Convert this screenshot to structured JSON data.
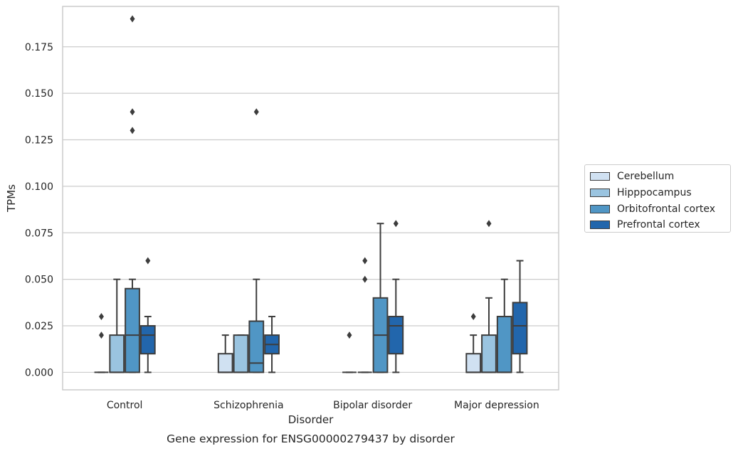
{
  "chart_data": {
    "type": "boxplot",
    "title": "Gene expression for ENSG00000279437 by disorder",
    "xlabel": "Disorder",
    "ylabel": "TPMs",
    "ylim": [
      -0.0094,
      0.1967
    ],
    "yticks": [
      0.0,
      0.025,
      0.05,
      0.075,
      0.1,
      0.125,
      0.15,
      0.175
    ],
    "ytick_labels": [
      "0.000",
      "0.025",
      "0.050",
      "0.075",
      "0.100",
      "0.125",
      "0.150",
      "0.175"
    ],
    "grid": true,
    "legend_position": "right",
    "categories": [
      "Control",
      "Schizophrenia",
      "Bipolar disorder",
      "Major depression"
    ],
    "series": [
      {
        "name": "Cerebellum",
        "color": "#d0e1f2",
        "boxes": [
          {
            "q1": 0.0,
            "median": 0.0,
            "q3": 0.0,
            "whisker_low": 0.0,
            "whisker_high": 0.0,
            "outliers": [
              0.02,
              0.03
            ]
          },
          {
            "q1": 0.0,
            "median": 0.0,
            "q3": 0.01,
            "whisker_low": 0.0,
            "whisker_high": 0.02,
            "outliers": []
          },
          {
            "q1": 0.0,
            "median": 0.0,
            "q3": 0.0,
            "whisker_low": 0.0,
            "whisker_high": 0.0,
            "outliers": [
              0.02
            ]
          },
          {
            "q1": 0.0,
            "median": 0.0,
            "q3": 0.01,
            "whisker_low": 0.0,
            "whisker_high": 0.02,
            "outliers": [
              0.03
            ]
          }
        ]
      },
      {
        "name": "Hipppocampus",
        "color": "#9ac4e0",
        "boxes": [
          {
            "q1": 0.0,
            "median": 0.0,
            "q3": 0.02,
            "whisker_low": 0.0,
            "whisker_high": 0.05,
            "outliers": []
          },
          {
            "q1": 0.0,
            "median": 0.0,
            "q3": 0.02,
            "whisker_low": 0.0,
            "whisker_high": 0.02,
            "outliers": []
          },
          {
            "q1": 0.0,
            "median": 0.0,
            "q3": 0.0,
            "whisker_low": 0.0,
            "whisker_high": 0.0,
            "outliers": [
              0.05,
              0.06
            ]
          },
          {
            "q1": 0.0,
            "median": 0.0,
            "q3": 0.02,
            "whisker_low": 0.0,
            "whisker_high": 0.04,
            "outliers": [
              0.08
            ]
          }
        ]
      },
      {
        "name": "Orbitofrontal cortex",
        "color": "#5096c5",
        "boxes": [
          {
            "q1": 0.0,
            "median": 0.02,
            "q3": 0.045,
            "whisker_low": 0.0,
            "whisker_high": 0.05,
            "outliers": [
              0.13,
              0.14,
              0.19
            ]
          },
          {
            "q1": 0.0,
            "median": 0.005,
            "q3": 0.0275,
            "whisker_low": 0.0,
            "whisker_high": 0.05,
            "outliers": [
              0.14
            ]
          },
          {
            "q1": 0.0,
            "median": 0.02,
            "q3": 0.04,
            "whisker_low": 0.0,
            "whisker_high": 0.08,
            "outliers": []
          },
          {
            "q1": 0.0,
            "median": 0.0,
            "q3": 0.03,
            "whisker_low": 0.0,
            "whisker_high": 0.05,
            "outliers": []
          }
        ]
      },
      {
        "name": "Prefrontal cortex",
        "color": "#2266ac",
        "boxes": [
          {
            "q1": 0.01,
            "median": 0.02,
            "q3": 0.025,
            "whisker_low": 0.0,
            "whisker_high": 0.03,
            "outliers": [
              0.06
            ]
          },
          {
            "q1": 0.01,
            "median": 0.015,
            "q3": 0.02,
            "whisker_low": 0.0,
            "whisker_high": 0.03,
            "outliers": []
          },
          {
            "q1": 0.01,
            "median": 0.025,
            "q3": 0.03,
            "whisker_low": 0.0,
            "whisker_high": 0.05,
            "outliers": [
              0.08
            ]
          },
          {
            "q1": 0.01,
            "median": 0.025,
            "q3": 0.0375,
            "whisker_low": 0.0,
            "whisker_high": 0.06,
            "outliers": []
          }
        ]
      }
    ]
  }
}
